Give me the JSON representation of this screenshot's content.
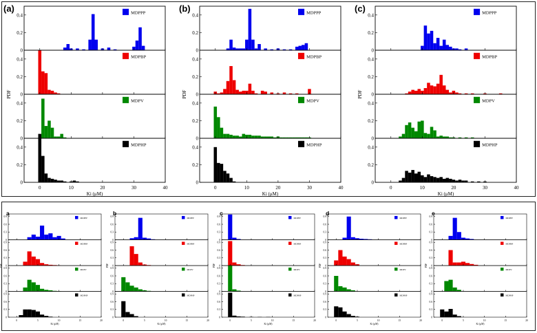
{
  "figure": {
    "top_label_style": "parenthesized",
    "bottom_label_style": "bold"
  },
  "chart_data": [
    {
      "type": "bar",
      "panel": "(a)",
      "group": "top",
      "xlabel": "Ki (μM)",
      "ylabel": "PDF",
      "xlim": [
        -5,
        40
      ],
      "ylim": [
        0,
        0.5
      ],
      "xticks": [
        0,
        10,
        20,
        30,
        40
      ],
      "yticks": [
        0,
        0.2,
        0.4
      ],
      "series": [
        {
          "name": "MDPPP",
          "color": "#0000ee",
          "bin_width": 1,
          "x": [
            8,
            9,
            10,
            12,
            14,
            16,
            17,
            18,
            20,
            22,
            24,
            30,
            31,
            32,
            33
          ],
          "values": [
            0.03,
            0.07,
            0.02,
            0.02,
            0.01,
            0.12,
            0.41,
            0.12,
            0.02,
            0.03,
            0.01,
            0.04,
            0.11,
            0.26,
            0.05
          ]
        },
        {
          "name": "MDPBP",
          "color": "#ee0000",
          "bin_width": 1,
          "x": [
            0,
            1,
            2,
            3,
            4,
            5,
            6
          ],
          "values": [
            0.5,
            0.26,
            0.24,
            0.05,
            0.04,
            0.02,
            0.01
          ]
        },
        {
          "name": "MDPV",
          "color": "#008800",
          "bin_width": 1,
          "x": [
            0,
            1,
            2,
            3,
            4,
            5,
            6,
            7,
            8
          ],
          "values": [
            0.02,
            0.45,
            0.14,
            0.2,
            0.12,
            0.02,
            0.02,
            0.05,
            0.01
          ]
        },
        {
          "name": "MDPHP",
          "color": "#000000",
          "bin_width": 1,
          "x": [
            0,
            1,
            2,
            3,
            4,
            5,
            6,
            7,
            8,
            10,
            11,
            12
          ],
          "values": [
            0.55,
            0.3,
            0.1,
            0.05,
            0.04,
            0.03,
            0.02,
            0.02,
            0.01,
            0.01,
            0.02,
            0.01
          ]
        }
      ]
    },
    {
      "type": "bar",
      "panel": "(b)",
      "group": "top",
      "xlabel": "Ki (μM)",
      "ylabel": "PDF",
      "xlim": [
        -5,
        40
      ],
      "ylim": [
        0,
        0.5
      ],
      "xticks": [
        0,
        10,
        20,
        30,
        40
      ],
      "yticks": [
        0,
        0.2,
        0.4
      ],
      "series": [
        {
          "name": "MDPPP",
          "color": "#0000ee",
          "bin_width": 1,
          "x": [
            4,
            5,
            6,
            7,
            8,
            9,
            10,
            11,
            12,
            13,
            14,
            16,
            18,
            20,
            22,
            24,
            26,
            27,
            28,
            29
          ],
          "values": [
            0.02,
            0.12,
            0.03,
            0.02,
            0.02,
            0.02,
            0.12,
            0.47,
            0.12,
            0.02,
            0.07,
            0.02,
            0.01,
            0.02,
            0.01,
            0.01,
            0.04,
            0.05,
            0.06,
            0.08
          ]
        },
        {
          "name": "MDPBP",
          "color": "#ee0000",
          "bin_width": 1,
          "x": [
            0,
            1,
            2,
            3,
            4,
            5,
            6,
            7,
            8,
            9,
            10,
            11,
            12,
            13,
            15,
            16,
            18,
            20,
            22,
            24,
            26,
            30
          ],
          "values": [
            0.03,
            0.01,
            0.02,
            0.06,
            0.15,
            0.32,
            0.16,
            0.05,
            0.03,
            0.04,
            0.04,
            0.12,
            0.04,
            0.01,
            0.04,
            0.03,
            0.02,
            0.01,
            0.02,
            0.01,
            0.01,
            0.06
          ]
        },
        {
          "name": "MDPV",
          "color": "#008800",
          "bin_width": 1,
          "x": [
            0,
            1,
            2,
            3,
            4,
            5,
            6,
            7,
            8,
            9,
            10,
            11,
            12,
            13,
            14,
            15,
            16,
            17,
            18,
            19,
            20,
            21,
            22,
            23,
            24,
            25,
            26,
            27,
            28,
            29,
            30
          ],
          "values": [
            0.36,
            0.24,
            0.12,
            0.05,
            0.05,
            0.04,
            0.03,
            0.03,
            0.02,
            0.05,
            0.04,
            0.04,
            0.03,
            0.03,
            0.03,
            0.02,
            0.02,
            0.02,
            0.02,
            0.01,
            0.02,
            0.01,
            0.01,
            0.01,
            0.01,
            0.01,
            0.01,
            0.01,
            0.01,
            0.01,
            0.01
          ]
        },
        {
          "name": "MDPHP",
          "color": "#000000",
          "bin_width": 1,
          "x": [
            0,
            1,
            2,
            3,
            4,
            5,
            6
          ],
          "values": [
            0.4,
            0.22,
            0.21,
            0.13,
            0.1,
            0.05,
            0.01
          ]
        }
      ]
    },
    {
      "type": "bar",
      "panel": "(c)",
      "group": "top",
      "xlabel": "Ki (μM)",
      "ylabel": "PDF",
      "xlim": [
        -5,
        40
      ],
      "ylim": [
        0,
        0.5
      ],
      "xticks": [
        0,
        10,
        20,
        30,
        40
      ],
      "yticks": [
        0,
        0.2,
        0.4
      ],
      "series": [
        {
          "name": "MDPPP",
          "color": "#0000ee",
          "bin_width": 1,
          "x": [
            10,
            11,
            12,
            13,
            14,
            15,
            16,
            17,
            18,
            19,
            20,
            21,
            22,
            24
          ],
          "values": [
            0.05,
            0.28,
            0.19,
            0.22,
            0.08,
            0.14,
            0.05,
            0.12,
            0.06,
            0.04,
            0.02,
            0.02,
            0.01,
            0.02
          ]
        },
        {
          "name": "MDPBP",
          "color": "#ee0000",
          "bin_width": 1,
          "x": [
            5,
            6,
            7,
            8,
            9,
            10,
            11,
            12,
            13,
            14,
            15,
            16,
            17,
            18,
            19,
            20,
            21,
            22,
            24,
            26,
            30,
            35
          ],
          "values": [
            0.01,
            0.03,
            0.05,
            0.04,
            0.06,
            0.04,
            0.07,
            0.13,
            0.1,
            0.09,
            0.12,
            0.22,
            0.1,
            0.05,
            0.02,
            0.04,
            0.02,
            0.01,
            0.01,
            0.01,
            0.01,
            0.01
          ]
        },
        {
          "name": "MDPV",
          "color": "#008800",
          "bin_width": 1,
          "x": [
            3,
            4,
            5,
            6,
            7,
            8,
            9,
            10,
            11,
            12,
            13,
            14,
            15,
            16,
            17,
            18,
            19,
            20,
            22,
            24,
            26
          ],
          "values": [
            0.02,
            0.05,
            0.15,
            0.18,
            0.12,
            0.08,
            0.19,
            0.2,
            0.06,
            0.05,
            0.13,
            0.09,
            0.02,
            0.03,
            0.02,
            0.02,
            0.01,
            0.01,
            0.01,
            0.01,
            0.01
          ]
        },
        {
          "name": "MDPHP",
          "color": "#000000",
          "bin_width": 1,
          "x": [
            3,
            4,
            5,
            6,
            7,
            8,
            9,
            10,
            11,
            12,
            13,
            14,
            15,
            16,
            17,
            18,
            19,
            20,
            21,
            22,
            23,
            24,
            26,
            28,
            30
          ],
          "values": [
            0.02,
            0.05,
            0.13,
            0.11,
            0.14,
            0.1,
            0.12,
            0.08,
            0.06,
            0.09,
            0.07,
            0.06,
            0.05,
            0.06,
            0.04,
            0.05,
            0.04,
            0.03,
            0.02,
            0.03,
            0.02,
            0.02,
            0.01,
            0.01,
            0.01
          ]
        }
      ]
    },
    {
      "type": "bar",
      "panel": "a",
      "group": "bottom",
      "xlabel": "Ki (μM)",
      "ylabel": "PDF",
      "xlim": [
        -2,
        20
      ],
      "ylim": [
        0,
        1
      ],
      "xticks": [
        0,
        5,
        10,
        15,
        20
      ],
      "yticks": [
        0,
        0.3,
        0.6,
        0.9
      ],
      "series": [
        {
          "name": "MDPPP",
          "color": "#0000ee",
          "bin_width": 1,
          "x": [
            3,
            4,
            5,
            6,
            7,
            8,
            9,
            10,
            11
          ],
          "values": [
            0.1,
            0.2,
            0.12,
            0.55,
            0.2,
            0.25,
            0.1,
            0.15,
            0.05
          ]
        },
        {
          "name": "MDPBP",
          "color": "#ee0000",
          "bin_width": 1,
          "x": [
            2,
            3,
            4,
            5,
            6,
            7,
            8,
            9,
            10
          ],
          "values": [
            0.15,
            0.55,
            0.35,
            0.25,
            0.1,
            0.05,
            0.03,
            0.02,
            0.01
          ]
        },
        {
          "name": "MDPV",
          "color": "#008800",
          "bin_width": 1,
          "x": [
            2,
            3,
            4,
            5,
            6,
            7,
            8,
            9,
            10
          ],
          "values": [
            0.15,
            0.45,
            0.35,
            0.25,
            0.1,
            0.06,
            0.04,
            0.02,
            0.01
          ]
        },
        {
          "name": "MDPHP",
          "color": "#000000",
          "bin_width": 1,
          "x": [
            1,
            2,
            3,
            4,
            5,
            6,
            7,
            8
          ],
          "values": [
            0.08,
            0.3,
            0.3,
            0.28,
            0.22,
            0.1,
            0.05,
            0.02
          ]
        }
      ]
    },
    {
      "type": "bar",
      "panel": "b",
      "group": "bottom",
      "xlabel": "Ki (μM)",
      "ylabel": "PDF",
      "xlim": [
        -2,
        20
      ],
      "ylim": [
        0,
        1
      ],
      "xticks": [
        0,
        5,
        10,
        15,
        20
      ],
      "yticks": [
        0,
        0.3,
        0.6,
        0.9
      ],
      "series": [
        {
          "name": "MDPPP",
          "color": "#0000ee",
          "bin_width": 1,
          "x": [
            2,
            3,
            4,
            5,
            6,
            7
          ],
          "values": [
            0.06,
            0.1,
            0.85,
            0.08,
            0.05,
            0.02
          ]
        },
        {
          "name": "MDPBP",
          "color": "#ee0000",
          "bin_width": 1,
          "x": [
            2,
            3,
            4,
            5,
            6
          ],
          "values": [
            0.75,
            0.45,
            0.12,
            0.04,
            0.02
          ]
        },
        {
          "name": "MDPV",
          "color": "#008800",
          "bin_width": 1,
          "x": [
            0,
            1,
            2,
            3,
            4,
            5,
            6
          ],
          "values": [
            0.55,
            0.35,
            0.22,
            0.15,
            0.08,
            0.04,
            0.02
          ]
        },
        {
          "name": "MDPHP",
          "color": "#000000",
          "bin_width": 1,
          "x": [
            0,
            1,
            2,
            3
          ],
          "values": [
            0.62,
            0.2,
            0.12,
            0.04
          ]
        }
      ]
    },
    {
      "type": "bar",
      "panel": "c",
      "group": "bottom",
      "xlabel": "Ki (μM)",
      "ylabel": "PDF",
      "xlim": [
        -2,
        20
      ],
      "ylim": [
        0,
        1
      ],
      "xticks": [
        0,
        5,
        10,
        15,
        20
      ],
      "yticks": [
        0,
        0.3,
        0.6,
        0.9
      ],
      "series": [
        {
          "name": "MDPPP",
          "color": "#0000ee",
          "bin_width": 1,
          "x": [
            0,
            1,
            2
          ],
          "values": [
            0.98,
            0.08,
            0.03
          ]
        },
        {
          "name": "MDPBP",
          "color": "#ee0000",
          "bin_width": 1,
          "x": [
            0,
            1,
            2,
            3
          ],
          "values": [
            0.95,
            0.12,
            0.05,
            0.02
          ]
        },
        {
          "name": "MDPV",
          "color": "#008800",
          "bin_width": 1,
          "x": [
            0,
            1,
            2
          ],
          "values": [
            1.0,
            0.08,
            0.03
          ]
        },
        {
          "name": "MDPHP",
          "color": "#000000",
          "bin_width": 1,
          "x": [
            0,
            1,
            2,
            3,
            5,
            7,
            9
          ],
          "values": [
            0.95,
            0.06,
            0.03,
            0.02,
            0.01,
            0.01,
            0.01
          ]
        }
      ]
    },
    {
      "type": "bar",
      "panel": "d",
      "group": "bottom",
      "xlabel": "Ki (μM)",
      "ylabel": "PDF",
      "xlim": [
        -2,
        20
      ],
      "ylim": [
        0,
        1
      ],
      "xticks": [
        0,
        5,
        10,
        15,
        20
      ],
      "yticks": [
        0,
        0.3,
        0.6,
        0.9
      ],
      "series": [
        {
          "name": "MDPPP",
          "color": "#0000ee",
          "bin_width": 1,
          "x": [
            2,
            3,
            4,
            5,
            6,
            7,
            8
          ],
          "values": [
            0.08,
            0.9,
            0.1,
            0.06,
            0.04,
            0.03,
            0.02
          ]
        },
        {
          "name": "MDPBP",
          "color": "#ee0000",
          "bin_width": 1,
          "x": [
            0,
            1,
            2,
            3,
            4,
            5
          ],
          "values": [
            0.2,
            0.6,
            0.35,
            0.25,
            0.12,
            0.05
          ]
        },
        {
          "name": "MDPV",
          "color": "#008800",
          "bin_width": 1,
          "x": [
            0,
            1,
            2,
            3,
            4
          ],
          "values": [
            0.6,
            0.2,
            0.15,
            0.08,
            0.04
          ]
        },
        {
          "name": "MDPHP",
          "color": "#000000",
          "bin_width": 1,
          "x": [
            0,
            1,
            2,
            3,
            4,
            5
          ],
          "values": [
            0.42,
            0.38,
            0.22,
            0.12,
            0.05,
            0.02
          ]
        }
      ]
    },
    {
      "type": "bar",
      "panel": "e",
      "group": "bottom",
      "xlabel": "Ki (μM)",
      "ylabel": "PDF",
      "xlim": [
        -2,
        20
      ],
      "ylim": [
        0,
        1
      ],
      "xticks": [
        0,
        5,
        10,
        15,
        20
      ],
      "yticks": [
        0,
        0.3,
        0.6,
        0.9
      ],
      "series": [
        {
          "name": "MDPPP",
          "color": "#0000ee",
          "bin_width": 1,
          "x": [
            2,
            3,
            4,
            5,
            6,
            7
          ],
          "values": [
            0.15,
            0.85,
            0.3,
            0.08,
            0.05,
            0.03
          ]
        },
        {
          "name": "MDPBP",
          "color": "#ee0000",
          "bin_width": 1,
          "x": [
            2,
            3,
            4,
            5,
            6,
            7,
            8
          ],
          "values": [
            0.6,
            0.12,
            0.12,
            0.15,
            0.1,
            0.06,
            0.03
          ]
        },
        {
          "name": "MDPV",
          "color": "#008800",
          "bin_width": 1,
          "x": [
            1,
            2,
            3,
            4
          ],
          "values": [
            0.4,
            0.45,
            0.15,
            0.06
          ]
        },
        {
          "name": "MDPHP",
          "color": "#000000",
          "bin_width": 1,
          "x": [
            0,
            1,
            2,
            3,
            4
          ],
          "values": [
            0.3,
            0.22,
            0.32,
            0.1,
            0.04
          ]
        }
      ]
    }
  ]
}
